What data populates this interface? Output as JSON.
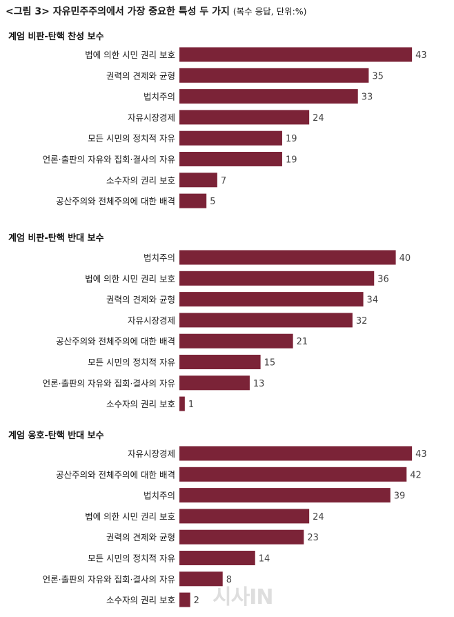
{
  "header": {
    "title": "<그림 3> 자유민주주의에서 가장 중요한 특성 두 가지",
    "subtitle": "(복수 응답, 단위:%)"
  },
  "watermark": "시사IN",
  "colors": {
    "bar": "#7b2337"
  },
  "chart_data": [
    {
      "type": "bar",
      "orientation": "horizontal",
      "title": "계엄 비판-탄핵 찬성 보수",
      "categories": [
        "법에 의한 시민 권리 보호",
        "권력의 견제와 균형",
        "법치주의",
        "자유시장경제",
        "모든 시민의 정치적 자유",
        "언론·출판의 자유와 집회·결사의 자유",
        "소수자의 권리 보호",
        "공산주의와 전체주의에 대한 배격"
      ],
      "values": [
        43,
        35,
        33,
        24,
        19,
        19,
        7,
        5
      ]
    },
    {
      "type": "bar",
      "orientation": "horizontal",
      "title": "계엄 비판-탄핵 반대 보수",
      "categories": [
        "법치주의",
        "법에 의한 시민 권리 보호",
        "권력의 견제와 균형",
        "자유시장경제",
        "공산주의와 전체주의에 대한 배격",
        "모든 시민의 정치적 자유",
        "언론·출판의 자유와 집회·결사의 자유",
        "소수자의 권리 보호"
      ],
      "values": [
        40,
        36,
        34,
        32,
        21,
        15,
        13,
        1
      ]
    },
    {
      "type": "bar",
      "orientation": "horizontal",
      "title": "계엄 옹호-탄핵 반대 보수",
      "categories": [
        "자유시장경제",
        "공산주의와 전체주의에 대한 배격",
        "법치주의",
        "법에 의한 시민 권리 보호",
        "권력의 견제와 균형",
        "모든 시민의 정치적 자유",
        "언론·출판의 자유와 집회·결사의 자유",
        "소수자의 권리 보호"
      ],
      "values": [
        43,
        42,
        39,
        24,
        23,
        14,
        8,
        2
      ]
    }
  ]
}
